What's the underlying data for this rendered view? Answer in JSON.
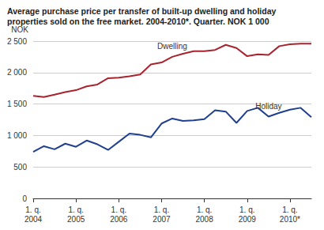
{
  "chart_data": {
    "type": "line",
    "title": "Average purchase price per transfer of built-up dwelling and holiday\nproperties sold on the free market. 2004-2010*. Quarter. NOK 1 000",
    "y_label": "NOK",
    "categories": [
      "1. q.\n2004",
      null,
      null,
      null,
      "1. q.\n2005",
      null,
      null,
      null,
      "1. q.\n2006",
      null,
      null,
      null,
      "1. q.\n2007",
      null,
      null,
      null,
      "1. q.\n2008",
      null,
      null,
      null,
      "1. q.\n2009",
      null,
      null,
      null,
      "1. q.\n2010*",
      null,
      null
    ],
    "series": [
      {
        "name": "Dwelling",
        "color": "#a8232e",
        "values": [
          1630,
          1610,
          1650,
          1690,
          1720,
          1780,
          1810,
          1910,
          1920,
          1940,
          1970,
          2130,
          2160,
          2250,
          2300,
          2340,
          2340,
          2360,
          2440,
          2390,
          2260,
          2290,
          2280,
          2420,
          2450,
          2460,
          2460
        ]
      },
      {
        "name": "Holiday",
        "color": "#1f3f8f",
        "values": [
          740,
          830,
          780,
          870,
          820,
          920,
          860,
          770,
          900,
          1030,
          1010,
          970,
          1190,
          1270,
          1230,
          1240,
          1260,
          1400,
          1380,
          1200,
          1390,
          1440,
          1300,
          1360,
          1410,
          1440,
          1290
        ]
      }
    ],
    "ylim": [
      0,
      2500
    ],
    "yticks": [
      0,
      500,
      {
        "value": 1000,
        "label": "1 000"
      },
      {
        "value": 1500,
        "label": "1 500"
      },
      {
        "value": 2000,
        "label": "2 000"
      },
      {
        "value": 2500,
        "label": "2 500"
      }
    ],
    "grid": true
  }
}
